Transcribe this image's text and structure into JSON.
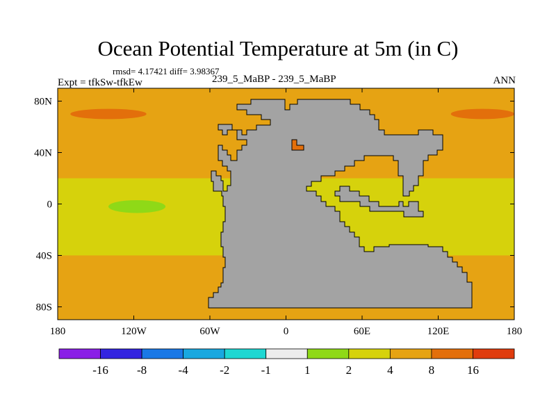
{
  "chart_data": {
    "type": "heatmap",
    "title": "Ocean Potential Temperature at 5m (in C)",
    "stats_line": "rmsd= 4.17421 diff= 3.98367",
    "left_label": "Expt = tfkSw-tfkEw",
    "center_label": "239_5_MaBP - 239_5_MaBP",
    "right_label": "ANN",
    "x_ticks": [
      {
        "lon": -180,
        "label": "180"
      },
      {
        "lon": -120,
        "label": "120W"
      },
      {
        "lon": -60,
        "label": "60W"
      },
      {
        "lon": 0,
        "label": "0"
      },
      {
        "lon": 60,
        "label": "60E"
      },
      {
        "lon": 120,
        "label": "120E"
      },
      {
        "lon": 180,
        "label": "180"
      }
    ],
    "y_ticks": [
      {
        "lat": 80,
        "label": "80N"
      },
      {
        "lat": 40,
        "label": "40N"
      },
      {
        "lat": 0,
        "label": "0"
      },
      {
        "lat": -40,
        "label": "40S"
      },
      {
        "lat": -80,
        "label": "80S"
      }
    ],
    "xlim": [
      -180,
      180
    ],
    "ylim": [
      -90,
      90
    ],
    "colorbar": {
      "colors": [
        "#8a1ee6",
        "#3324e0",
        "#1a78e6",
        "#19a8e0",
        "#1ed7d2",
        "#ececec",
        "#8fd917",
        "#d6d20c",
        "#e6a313",
        "#e36f0b",
        "#e03c0e"
      ],
      "boundary_labels": [
        "-16",
        "-8",
        "-4",
        "-2",
        "-1",
        "1",
        "2",
        "4",
        "8",
        "16"
      ]
    },
    "field_bands": [
      {
        "lat_range": [
          60,
          90
        ],
        "level": "4 to 8"
      },
      {
        "lat_range": [
          20,
          60
        ],
        "level": "4 to 8"
      },
      {
        "lat_range": [
          -40,
          20
        ],
        "level": "2 to 4"
      },
      {
        "lat_range": [
          -90,
          -40
        ],
        "level": "4 to 8"
      }
    ],
    "features": [
      {
        "lon": [
          -170,
          -110
        ],
        "lat": [
          66,
          74
        ],
        "level": "8 to 16"
      },
      {
        "lon": [
          130,
          180
        ],
        "lat": [
          66,
          74
        ],
        "level": "8 to 16"
      },
      {
        "lon": [
          -140,
          -95
        ],
        "lat": [
          -7,
          3
        ],
        "level": "1 to 2"
      }
    ],
    "land_color": "#a3a3a3"
  }
}
